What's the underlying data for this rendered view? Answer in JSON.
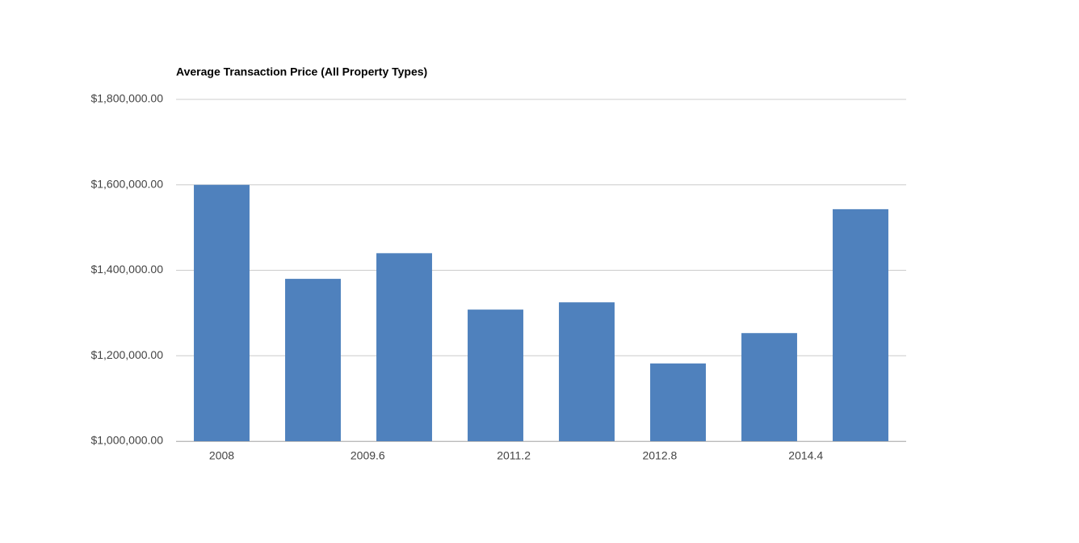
{
  "chart_data": {
    "type": "bar",
    "title": "Average Transaction Price (All Property Types)",
    "x": [
      2008,
      2009,
      2010,
      2011,
      2012,
      2013,
      2014,
      2015
    ],
    "values": [
      1600000,
      1380000,
      1440000,
      1308000,
      1325000,
      1182000,
      1253000,
      1543000
    ],
    "color": "#4f81bd",
    "xlim": [
      2007.5,
      2015.5
    ],
    "xticks": [
      2008,
      2009.6,
      2011.2,
      2012.8,
      2014.4
    ],
    "ylim": [
      1000000,
      1800000
    ],
    "yticks": [
      {
        "value": 1000000,
        "label": "$1,000,000.00"
      },
      {
        "value": 1200000,
        "label": "$1,200,000.00"
      },
      {
        "value": 1400000,
        "label": "$1,400,000.00"
      },
      {
        "value": 1600000,
        "label": "$1,600,000.00"
      },
      {
        "value": 1800000,
        "label": "$1,800,000.00"
      }
    ],
    "grid": true
  }
}
